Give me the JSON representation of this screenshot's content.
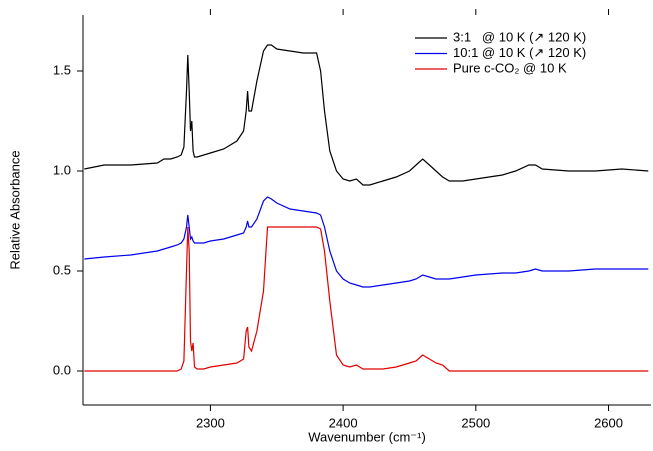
{
  "chart_data": {
    "type": "line",
    "xlabel": "Wavenumber (cm⁻¹)",
    "ylabel": "Relative Absorbance",
    "x": [
      2205,
      2220,
      2240,
      2260,
      2265,
      2270,
      2275,
      2278,
      2280,
      2282,
      2283,
      2284,
      2285,
      2286,
      2287,
      2288,
      2290,
      2295,
      2300,
      2310,
      2320,
      2325,
      2327,
      2328,
      2329,
      2331,
      2335,
      2340,
      2343,
      2346,
      2350,
      2360,
      2370,
      2380,
      2383,
      2386,
      2390,
      2395,
      2400,
      2405,
      2410,
      2415,
      2420,
      2430,
      2440,
      2450,
      2455,
      2460,
      2465,
      2470,
      2475,
      2480,
      2490,
      2500,
      2520,
      2530,
      2540,
      2545,
      2550,
      2570,
      2590,
      2610,
      2630
    ],
    "series": [
      {
        "name": "3:1   @ 10 K (↗ 120 K)",
        "color": "#000000",
        "values": [
          1.01,
          1.03,
          1.03,
          1.04,
          1.06,
          1.06,
          1.07,
          1.08,
          1.12,
          1.4,
          1.58,
          1.4,
          1.2,
          1.25,
          1.1,
          1.07,
          1.07,
          1.08,
          1.09,
          1.11,
          1.15,
          1.2,
          1.3,
          1.4,
          1.3,
          1.3,
          1.45,
          1.6,
          1.63,
          1.63,
          1.61,
          1.6,
          1.59,
          1.59,
          1.5,
          1.3,
          1.1,
          1.0,
          0.96,
          0.95,
          0.96,
          0.93,
          0.93,
          0.95,
          0.97,
          1.0,
          1.03,
          1.06,
          1.03,
          1.0,
          0.97,
          0.95,
          0.95,
          0.96,
          0.98,
          1.0,
          1.03,
          1.03,
          1.01,
          1.0,
          1.0,
          1.01,
          1.0
        ]
      },
      {
        "name": "10:1 @ 10 K (↗ 120 K)",
        "color": "#0000ee",
        "values": [
          0.56,
          0.57,
          0.58,
          0.6,
          0.61,
          0.62,
          0.63,
          0.64,
          0.66,
          0.72,
          0.78,
          0.72,
          0.66,
          0.67,
          0.65,
          0.64,
          0.64,
          0.64,
          0.65,
          0.66,
          0.68,
          0.69,
          0.72,
          0.75,
          0.72,
          0.72,
          0.76,
          0.85,
          0.87,
          0.86,
          0.84,
          0.81,
          0.8,
          0.79,
          0.78,
          0.72,
          0.6,
          0.5,
          0.46,
          0.44,
          0.43,
          0.42,
          0.42,
          0.43,
          0.44,
          0.45,
          0.46,
          0.48,
          0.47,
          0.46,
          0.46,
          0.46,
          0.47,
          0.48,
          0.49,
          0.49,
          0.5,
          0.51,
          0.5,
          0.5,
          0.51,
          0.51,
          0.51
        ]
      },
      {
        "name": "Pure c-CO₂ @ 10 K",
        "color": "#e00000",
        "values": [
          0.0,
          0.0,
          0.0,
          0.0,
          0.0,
          0.0,
          0.0,
          0.01,
          0.05,
          0.5,
          0.72,
          0.6,
          0.15,
          0.1,
          0.14,
          0.02,
          0.01,
          0.01,
          0.02,
          0.03,
          0.04,
          0.06,
          0.2,
          0.22,
          0.12,
          0.1,
          0.2,
          0.4,
          0.72,
          0.72,
          0.72,
          0.72,
          0.72,
          0.72,
          0.71,
          0.6,
          0.35,
          0.08,
          0.03,
          0.02,
          0.03,
          0.01,
          0.01,
          0.01,
          0.02,
          0.04,
          0.05,
          0.08,
          0.06,
          0.04,
          0.03,
          0.0,
          0.0,
          0.0,
          0.0,
          0.0,
          0.0,
          0.0,
          0.0,
          0.0,
          0.0,
          0.0,
          0.0
        ]
      }
    ],
    "xlim": [
      2204,
      2632
    ],
    "xticks": [
      2300,
      2400,
      2500,
      2600
    ],
    "ylim": [
      -0.17,
      1.78
    ],
    "yticks": [
      {
        "value": 0,
        "label": "0.0"
      },
      {
        "value": 0.5,
        "label": "0.5"
      },
      {
        "value": 1,
        "label": "1.0"
      },
      {
        "value": 1.5,
        "label": "1.5"
      }
    ],
    "grid": false,
    "legend": "top-right"
  }
}
